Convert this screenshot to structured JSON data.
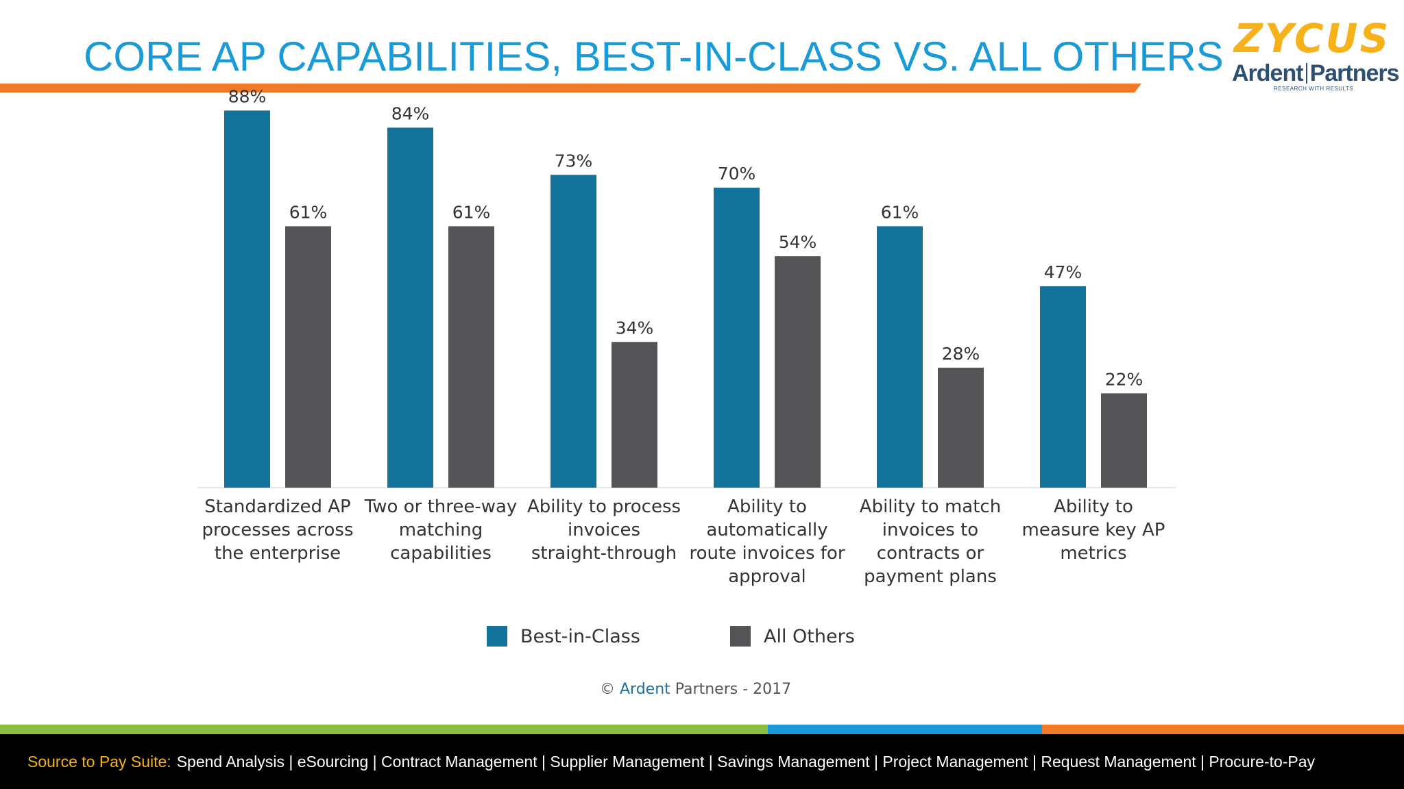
{
  "header": {
    "title": "CORE AP CAPABILITIES, BEST-IN-CLASS VS. ALL OTHERS",
    "logo_primary": "ZYCUS",
    "logo_secondary_left": "Ardent",
    "logo_secondary_right": "Partners",
    "logo_tagline": "RESEARCH WITH RESULTS"
  },
  "chart_data": {
    "type": "bar",
    "title": "",
    "xlabel": "",
    "ylabel": "",
    "ylim": [
      0,
      100
    ],
    "categories": [
      [
        "Standardized AP",
        "processes across",
        "the enterprise"
      ],
      [
        "Two or three-way",
        "matching",
        "capabilities"
      ],
      [
        "Ability to process",
        "invoices",
        "straight-through"
      ],
      [
        "Ability to",
        "automatically",
        "route invoices for",
        "approval"
      ],
      [
        "Ability to match",
        "invoices to",
        "contracts or",
        "payment plans"
      ],
      [
        "Ability to",
        "measure key AP",
        "metrics"
      ]
    ],
    "series": [
      {
        "name": "Best-in-Class",
        "color": "#12729a",
        "values": [
          88,
          84,
          73,
          70,
          61,
          47
        ],
        "labels": [
          "88%",
          "84%",
          "73%",
          "70%",
          "61%",
          "47%"
        ]
      },
      {
        "name": "All Others",
        "color": "#555557",
        "values": [
          61,
          61,
          34,
          54,
          28,
          22
        ],
        "labels": [
          "61%",
          "61%",
          "34%",
          "54%",
          "28%",
          "22%"
        ]
      }
    ],
    "legend_position": "bottom"
  },
  "credit": {
    "symbol": "©",
    "brand": "Ardent",
    "rest": "Partners - 2017"
  },
  "footer": {
    "label": "Source to Pay Suite:",
    "items": "Spend Analysis | eSourcing | Contract Management | Supplier Management | Savings Management | Project Management | Request Management | Procure-to-Pay"
  },
  "colors": {
    "accent_orange": "#f07a28",
    "title_blue": "#1a9bd7",
    "band_green": "#8bbd3f",
    "band_blue": "#1a9bd7"
  }
}
